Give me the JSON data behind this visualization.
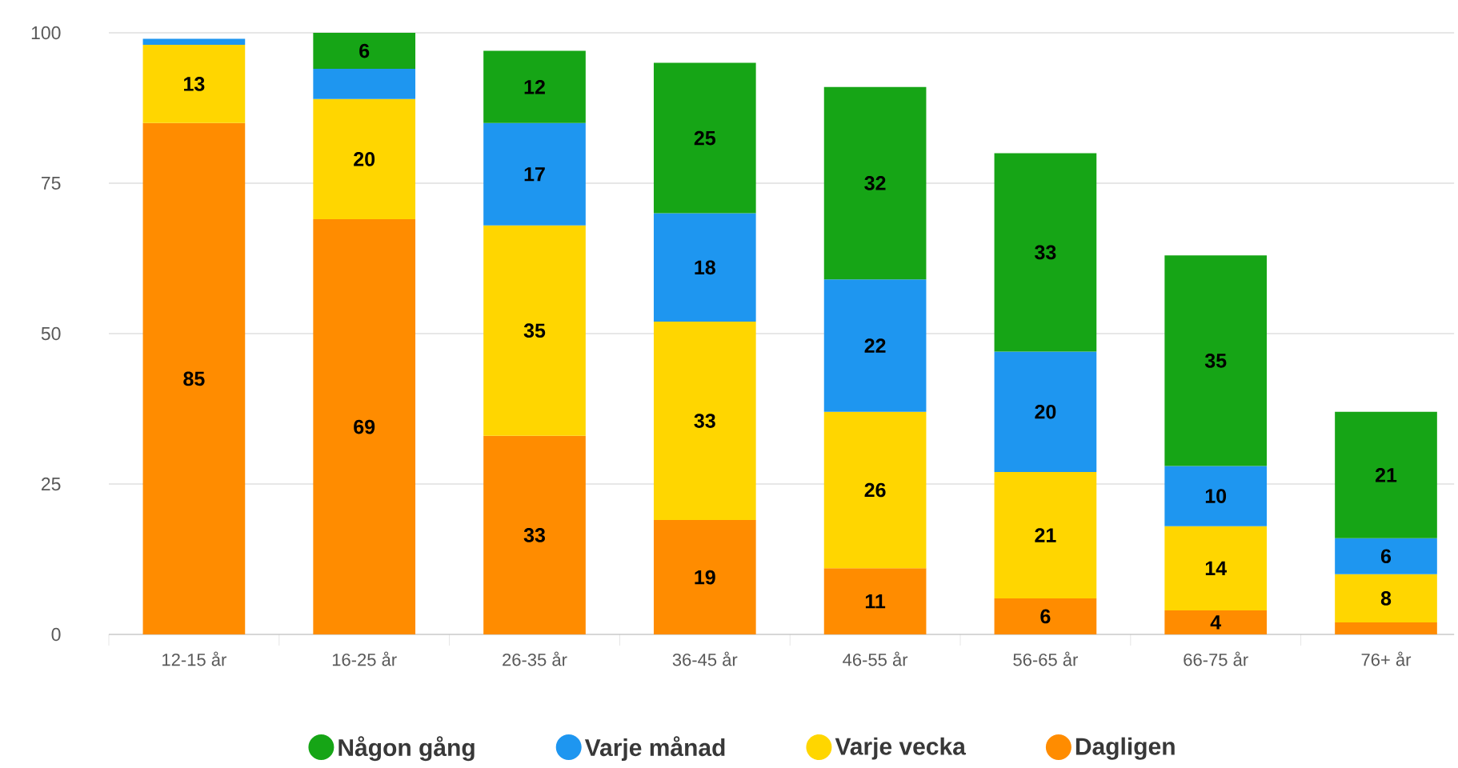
{
  "chart_data": {
    "type": "bar",
    "stacked": true,
    "categories": [
      "12-15 år",
      "16-25 år",
      "26-35 år",
      "36-45 år",
      "46-55 år",
      "56-65 år",
      "66-75 år",
      "76+ år"
    ],
    "series": [
      {
        "name": "Dagligen",
        "color": "#ff8c00",
        "values": [
          85,
          69,
          33,
          19,
          11,
          6,
          4,
          2
        ],
        "value_labels": [
          "85",
          "69",
          "33",
          "19",
          "11",
          "6",
          "4",
          null
        ]
      },
      {
        "name": "Varje vecka",
        "color": "#ffd600",
        "values": [
          13,
          20,
          35,
          33,
          26,
          21,
          14,
          8
        ],
        "value_labels": [
          "13",
          "20",
          "35",
          "33",
          "26",
          "21",
          "14",
          "8"
        ]
      },
      {
        "name": "Varje månad",
        "color": "#1e96f0",
        "values": [
          1,
          5,
          17,
          18,
          22,
          20,
          10,
          6
        ],
        "value_labels": [
          null,
          null,
          "17",
          "18",
          "22",
          "20",
          "10",
          "6"
        ]
      },
      {
        "name": "Någon gång",
        "color": "#16a516",
        "values": [
          null,
          6,
          12,
          25,
          32,
          33,
          35,
          21
        ],
        "value_labels": [
          null,
          "6",
          "12",
          "25",
          "32",
          "33",
          "35",
          "21"
        ]
      }
    ],
    "ylim": [
      0,
      100
    ],
    "yticks": [
      0,
      25,
      50,
      75,
      100
    ],
    "grid": "y",
    "legend": "bottom"
  }
}
